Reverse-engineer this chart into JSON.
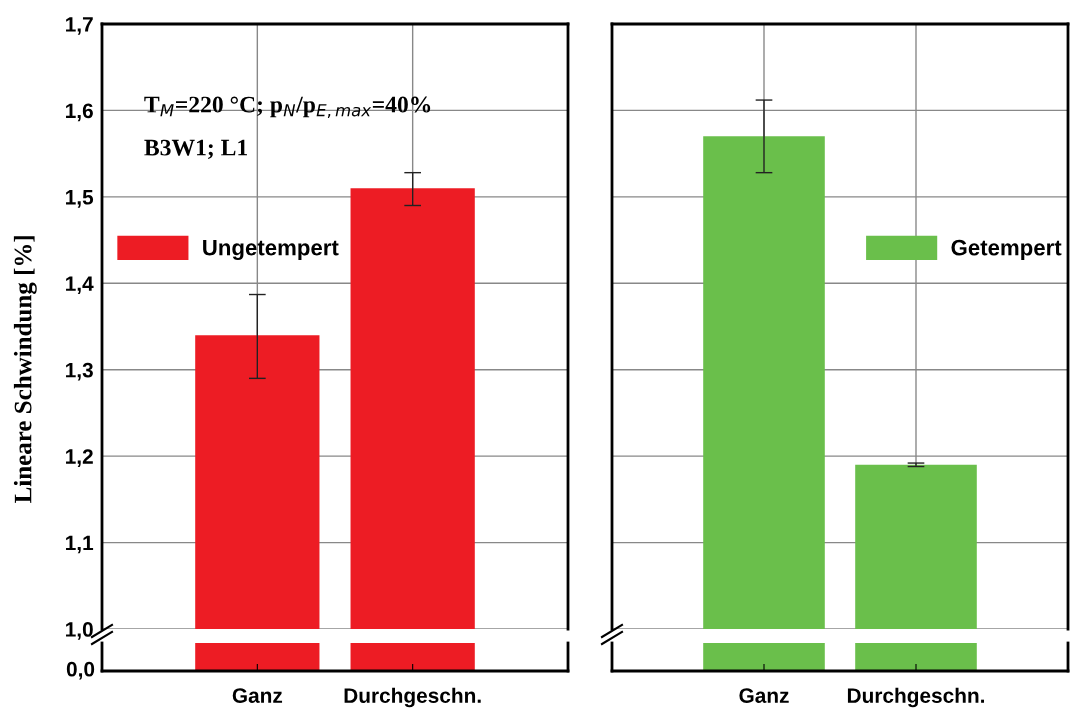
{
  "chart_data": [
    {
      "type": "bar",
      "ylabel": "Lineare Schwindung [%]",
      "categories": [
        "Ganz",
        "Durchgeschn."
      ],
      "series": [
        {
          "name": "Ungetempert",
          "color": "#ed1c24",
          "values": [
            1.34,
            1.51
          ],
          "errors": [
            [
              1.29,
              1.387
            ],
            [
              1.49,
              1.528
            ]
          ]
        }
      ],
      "ylim": [
        1.0,
        1.7
      ],
      "yticks": [
        {
          "value": 1.0,
          "label": "1,0"
        },
        {
          "value": 1.1,
          "label": "1,1"
        },
        {
          "value": 1.2,
          "label": "1,2"
        },
        {
          "value": 1.3,
          "label": "1,3"
        },
        {
          "value": 1.4,
          "label": "1,4"
        },
        {
          "value": 1.5,
          "label": "1,5"
        },
        {
          "value": 1.6,
          "label": "1,6"
        },
        {
          "value": 1.7,
          "label": "1,7"
        }
      ],
      "annotations": [
        "T$_{M}$=220 °C; p$_{N}$/p$_{E,max}$=40%",
        "B3W1; L1",
        "0,0"
      ],
      "grid": true,
      "legend": "left"
    },
    {
      "type": "bar",
      "categories": [
        "Ganz",
        "Durchgeschn."
      ],
      "series": [
        {
          "name": "Getempert",
          "color": "#6abf4b",
          "values": [
            1.57,
            1.19
          ],
          "errors": [
            [
              1.528,
              1.612
            ],
            [
              1.188,
              1.192
            ]
          ]
        }
      ],
      "ylim": [
        1.0,
        1.7
      ],
      "yticks": [
        1.0,
        1.1,
        1.2,
        1.3,
        1.4,
        1.5,
        1.6,
        1.7
      ],
      "grid": true,
      "legend": "right",
      "tick_labels": "x"
    }
  ]
}
